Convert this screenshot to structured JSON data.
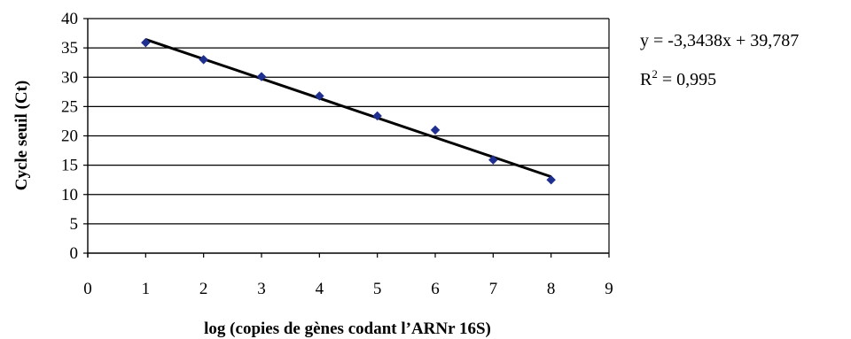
{
  "chart_data": {
    "type": "scatter",
    "title": "",
    "xlabel": "log (copies de gènes codant l’ARNr 16S)",
    "ylabel": "Cycle  seuil (Ct)",
    "xlim": [
      0,
      9
    ],
    "ylim": [
      0,
      40
    ],
    "xticks": [
      "0",
      "1",
      "2",
      "3",
      "4",
      "5",
      "6",
      "7",
      "8",
      "9"
    ],
    "yticks": [
      "0",
      "5",
      "10",
      "15",
      "20",
      "25",
      "30",
      "35",
      "40"
    ],
    "grid": "horizontal",
    "series": [
      {
        "x": [
          1,
          2,
          3,
          4,
          5,
          6,
          7,
          8
        ],
        "y": [
          35.9,
          33.0,
          30.1,
          26.8,
          23.4,
          21.0,
          15.9,
          12.5
        ],
        "marker_color": "#1f2f8f"
      }
    ],
    "trendline": {
      "type": "linear",
      "slope": -3.3438,
      "intercept": 39.787,
      "x_range": [
        1,
        8
      ],
      "color": "#000000"
    },
    "annotations": {
      "equation": "y = -3,3438x + 39,787",
      "r2_prefix": "R",
      "r2_sup": "2",
      "r2_value": " = 0,995"
    }
  }
}
